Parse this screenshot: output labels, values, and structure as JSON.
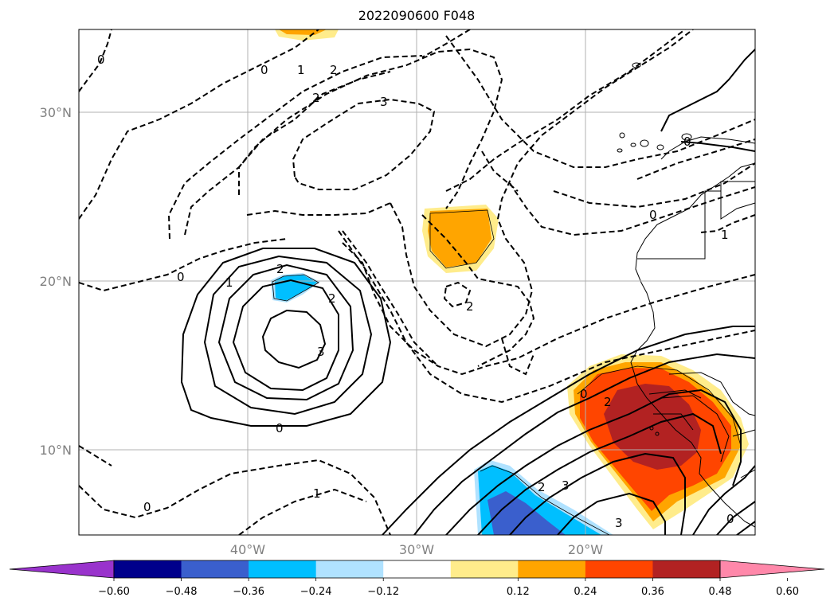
{
  "title": "2022090600 F048",
  "lat_labels": [
    "30°N",
    "20°N",
    "10°N"
  ],
  "lon_labels": [
    "40°W",
    "30°W",
    "20°W"
  ],
  "colorbar": {
    "ticks": [
      "−0.60",
      "−0.48",
      "−0.36",
      "−0.24",
      "−0.12",
      "0.12",
      "0.24",
      "0.36",
      "0.48",
      "0.60"
    ],
    "colors": [
      "#9933cc",
      "#00008b",
      "#3a5fcd",
      "#00bfff",
      "#b0e2ff",
      "#ffffff",
      "#ffec8b",
      "#ffa500",
      "#ff4500",
      "#b22222",
      "#ff88aa"
    ]
  },
  "contour_labels": [
    "0",
    "1",
    "2",
    "2",
    "3",
    "0",
    "1",
    "2",
    "2",
    "3",
    "0",
    "0",
    "1",
    "2",
    "2",
    "3",
    "0",
    "0",
    "0",
    "2",
    "3",
    "0",
    "1",
    "0"
  ],
  "extent": {
    "lon": [
      -50,
      -10
    ],
    "lat": [
      5,
      35
    ]
  }
}
